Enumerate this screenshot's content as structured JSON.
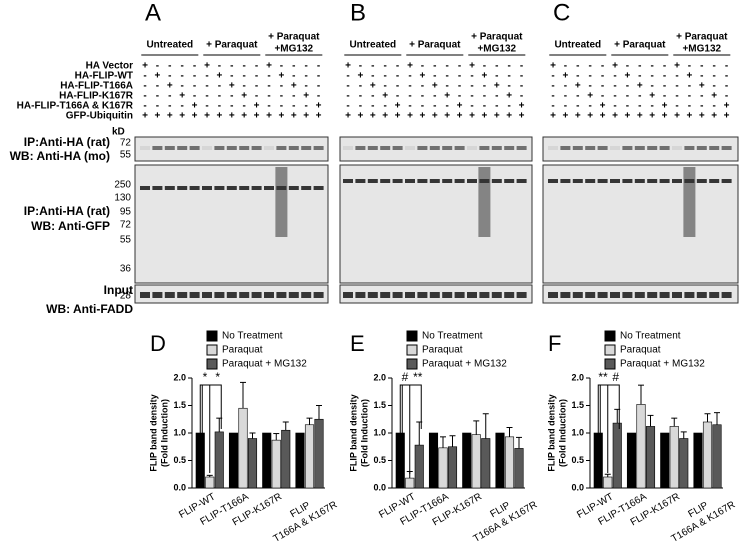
{
  "panels": [
    "A",
    "B",
    "C"
  ],
  "conditions": [
    [
      "Untreated"
    ],
    [
      "+ Paraquat"
    ],
    [
      "+ Paraquat",
      "+MG132"
    ]
  ],
  "rows": [
    {
      "label": "HA Vector",
      "lanes": [
        "+",
        "-",
        "-",
        "-",
        "-",
        "+",
        "-",
        "-",
        "-",
        "-",
        "+",
        "-",
        "-",
        "-",
        "-"
      ]
    },
    {
      "label": "HA-FLIP-WT",
      "lanes": [
        "-",
        "+",
        "-",
        "-",
        "-",
        "-",
        "+",
        "-",
        "-",
        "-",
        "-",
        "+",
        "-",
        "-",
        "-"
      ]
    },
    {
      "label": "HA-FLIP-T166A",
      "lanes": [
        "-",
        "-",
        "+",
        "-",
        "-",
        "-",
        "-",
        "+",
        "-",
        "-",
        "-",
        "-",
        "+",
        "-",
        "-"
      ]
    },
    {
      "label": "HA-FLIP-K167R",
      "lanes": [
        "-",
        "-",
        "-",
        "+",
        "-",
        "-",
        "-",
        "-",
        "+",
        "-",
        "-",
        "-",
        "-",
        "+",
        "-"
      ]
    },
    {
      "label": "HA-FLIP-T166A & K167R",
      "lanes": [
        "-",
        "-",
        "-",
        "-",
        "+",
        "-",
        "-",
        "-",
        "-",
        "+",
        "-",
        "-",
        "-",
        "-",
        "+"
      ]
    },
    {
      "label": "GFP-Ubiquitin",
      "lanes": [
        "+",
        "+",
        "+",
        "+",
        "+",
        "+",
        "+",
        "+",
        "+",
        "+",
        "+",
        "+",
        "+",
        "+",
        "+"
      ]
    }
  ],
  "blots": {
    "kd": "kD",
    "top": {
      "markers": [
        "72",
        "55"
      ],
      "labels": [
        "IP:Anti-HA (rat)",
        "WB: Anti-HA (mo)"
      ]
    },
    "middle": {
      "markers": [
        "250",
        "130",
        "95",
        "72",
        "55",
        "36"
      ],
      "labels": [
        "IP:Anti-HA (rat)",
        "WB: Anti-GFP"
      ]
    },
    "bottom": {
      "markers": [
        "28"
      ],
      "labels": [
        "Input",
        "WB: Anti-FADD"
      ]
    }
  },
  "chart_data": [
    {
      "type": "bar",
      "panel": "D",
      "ylabel": [
        "FLIP band density",
        "(Fold Induction)"
      ],
      "categories": [
        "FLIP-WT",
        "FLIP-T166A",
        "FLIP-K167R",
        [
          "FLIP",
          "T166A & K167R"
        ]
      ],
      "series": [
        {
          "name": "No Treatment",
          "color": "#000000",
          "values": [
            1,
            1,
            1,
            1
          ]
        },
        {
          "name": "Paraquat",
          "color": "#d9d9d9",
          "values": [
            0.2,
            1.45,
            0.87,
            1.15
          ],
          "errors": [
            0.03,
            0.47,
            0.12,
            0.12
          ]
        },
        {
          "name": "Paraquat + MG132",
          "color": "#595959",
          "values": [
            1.02,
            0.9,
            1.05,
            1.25
          ],
          "errors": [
            0.25,
            0.1,
            0.15,
            0.25
          ]
        }
      ],
      "annotations": [
        "*",
        "*"
      ],
      "ylim": [
        0,
        2
      ],
      "yticks": [
        {
          "value": 0,
          "label": "0.0"
        },
        {
          "value": 0.5,
          "label": "0.5"
        },
        {
          "value": 1,
          "label": "1.0"
        },
        {
          "value": 1.5,
          "label": "1.5"
        },
        {
          "value": 2,
          "label": "2.0"
        }
      ]
    },
    {
      "type": "bar",
      "panel": "E",
      "ylabel": [
        "FLIP band density",
        "(Fold Induction)"
      ],
      "categories": [
        "FLIP-WT",
        "FLIP-T166A",
        "FLIP-K167R",
        [
          "FLIP",
          "T166A & K167R"
        ]
      ],
      "series": [
        {
          "name": "No Treatment",
          "color": "#000000",
          "values": [
            1,
            1,
            1,
            1
          ]
        },
        {
          "name": "Paraquat",
          "color": "#d9d9d9",
          "values": [
            0.18,
            0.73,
            0.97,
            0.93
          ],
          "errors": [
            0.12,
            0.2,
            0.25,
            0.17
          ]
        },
        {
          "name": "Paraquat + MG132",
          "color": "#595959",
          "values": [
            0.78,
            0.75,
            0.9,
            0.72
          ],
          "errors": [
            0.42,
            0.2,
            0.45,
            0.2
          ]
        }
      ],
      "annotations": [
        "#",
        "**"
      ],
      "ylim": [
        0,
        2
      ],
      "yticks": [
        {
          "value": 0,
          "label": "0.0"
        },
        {
          "value": 0.5,
          "label": "0.5"
        },
        {
          "value": 1,
          "label": "1.0"
        },
        {
          "value": 1.5,
          "label": "1.5"
        },
        {
          "value": 2,
          "label": "2.0"
        }
      ]
    },
    {
      "type": "bar",
      "panel": "F",
      "ylabel": [
        "FLIP band density",
        "(Fold Induction)"
      ],
      "categories": [
        "FLIP-WT",
        "FLIP-T166A",
        "FLIP-K167R",
        [
          "FLIP",
          "T166A & K167R"
        ]
      ],
      "series": [
        {
          "name": "No Treatment",
          "color": "#000000",
          "values": [
            1,
            1,
            1,
            1
          ]
        },
        {
          "name": "Paraquat",
          "color": "#d9d9d9",
          "values": [
            0.2,
            1.52,
            1.12,
            1.2
          ],
          "errors": [
            0.05,
            0.35,
            0.15,
            0.15
          ]
        },
        {
          "name": "Paraquat + MG132",
          "color": "#595959",
          "values": [
            1.18,
            1.12,
            0.9,
            1.15
          ],
          "errors": [
            0.25,
            0.2,
            0.12,
            0.22
          ]
        }
      ],
      "annotations": [
        "**",
        "#"
      ],
      "ylim": [
        0,
        2
      ],
      "yticks": [
        {
          "value": 0,
          "label": "0.0"
        },
        {
          "value": 0.5,
          "label": "0.5"
        },
        {
          "value": 1,
          "label": "1.0"
        },
        {
          "value": 1.5,
          "label": "1.5"
        },
        {
          "value": 2,
          "label": "2.0"
        }
      ]
    }
  ]
}
